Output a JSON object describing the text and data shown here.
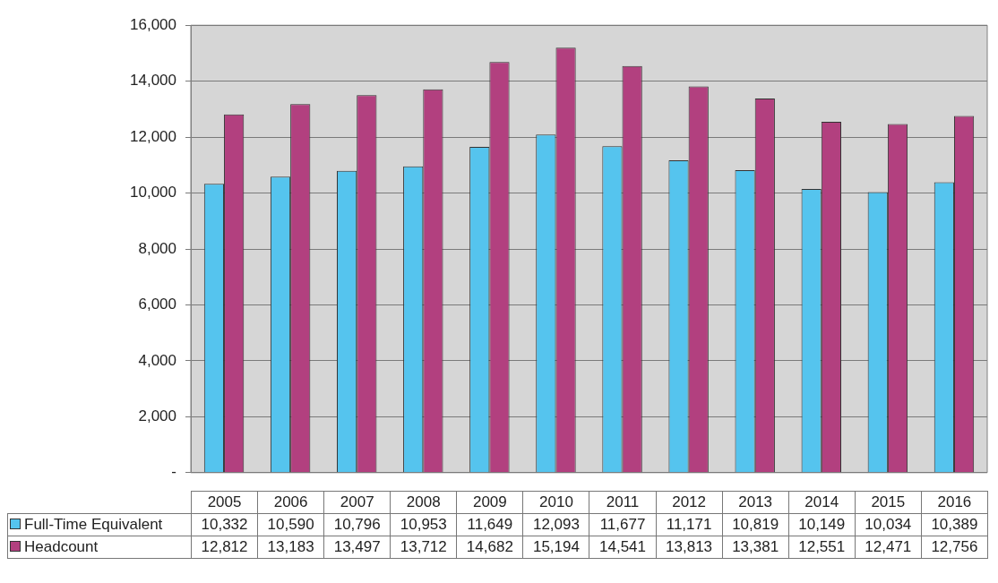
{
  "chart_data": {
    "type": "bar",
    "categories": [
      "2005",
      "2006",
      "2007",
      "2008",
      "2009",
      "2010",
      "2011",
      "2012",
      "2013",
      "2014",
      "2015",
      "2016"
    ],
    "series": [
      {
        "name": "Full-Time Equivalent",
        "color": "#55c4ee",
        "values": [
          10332,
          10590,
          10796,
          10953,
          11649,
          12093,
          11677,
          11171,
          10819,
          10149,
          10034,
          10389
        ],
        "value_labels": [
          "10,332",
          "10,590",
          "10,796",
          "10,953",
          "11,649",
          "12,093",
          "11,677",
          "11,171",
          "10,819",
          "10,149",
          "10,034",
          "10,389"
        ]
      },
      {
        "name": "Headcount",
        "color": "#b2407f",
        "values": [
          12812,
          13183,
          13497,
          13712,
          14682,
          15194,
          14541,
          13813,
          13381,
          12551,
          12471,
          12756
        ],
        "value_labels": [
          "12,812",
          "13,183",
          "13,497",
          "13,712",
          "14,682",
          "15,194",
          "14,541",
          "13,813",
          "13,381",
          "12,551",
          "12,471",
          "12,756"
        ]
      }
    ],
    "ylim": [
      0,
      16000
    ],
    "yticks": [
      {
        "value": 0,
        "label": "-"
      },
      {
        "value": 2000,
        "label": "2,000"
      },
      {
        "value": 4000,
        "label": "4,000"
      },
      {
        "value": 6000,
        "label": "6,000"
      },
      {
        "value": 8000,
        "label": "8,000"
      },
      {
        "value": 10000,
        "label": "10,000"
      },
      {
        "value": 12000,
        "label": "12,000"
      },
      {
        "value": 14000,
        "label": "14,000"
      },
      {
        "value": 16000,
        "label": "16,000"
      }
    ],
    "grid": "y",
    "legend": "bottom"
  }
}
